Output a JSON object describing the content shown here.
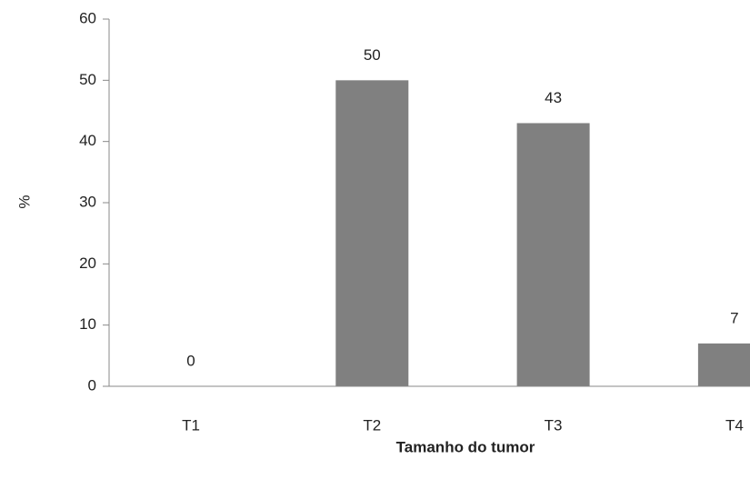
{
  "chart_data": {
    "type": "bar",
    "x_label": "Tamanho do tumor",
    "y_label": "%",
    "categories": [
      "T1",
      "T2",
      "T3",
      "T4"
    ],
    "values": [
      0,
      50,
      43,
      7
    ],
    "color": "#808080",
    "ylim": [
      0,
      60
    ],
    "yticks": [
      0,
      10,
      20,
      30,
      40,
      50,
      60
    ],
    "grid": false
  }
}
